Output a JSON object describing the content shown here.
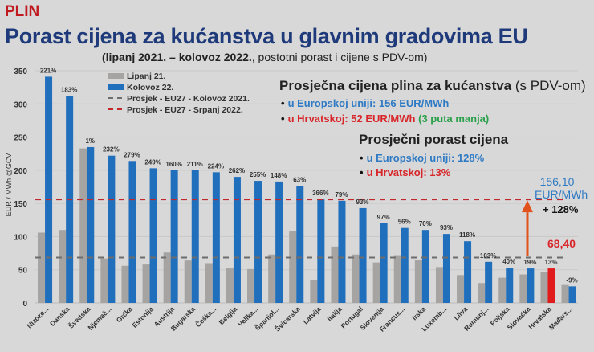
{
  "header": {
    "tag": "PLIN",
    "title": "Porast cijena za kućanstva u glavnim gradovima EU",
    "subtitle_bold": "(lipanj 2021. – kolovoz 2022.",
    "subtitle_rest": ", postotni porast i cijene s PDV-om)"
  },
  "info": {
    "avg_price_title": "Prosječna cijena plina za kućanstva",
    "avg_price_title_suffix": " (s PDV-om)",
    "eu_price": "u Europskoj uniji: 156 EUR/MWh",
    "hr_price": "u Hrvatskoj: 52 EUR/MWh",
    "hr_price_note": "(3 puta manja)",
    "avg_increase_title": "Prosječni porast cijena",
    "eu_increase": "u Europskoj uniji: 128%",
    "hr_increase": "u Hrvatskoj: 13%"
  },
  "annotations": {
    "eu_value_line1": "156,10",
    "eu_value_line2": "EUR/MWh",
    "increase": "+ 128%",
    "old_value": "68,40"
  },
  "colors": {
    "lipanj": "#a6a4a2",
    "kolovoz": "#1f6fbd",
    "hrvatska": "#e11b1b",
    "avg2021": "#6d6d6d",
    "avg2022": "#c0282c",
    "arrow": "#e2521c"
  },
  "chart_data": {
    "type": "bar",
    "title": "Porast cijena za kućanstva u glavnim gradovima EU",
    "xlabel": "",
    "ylabel": "EUR / MWh @GCV",
    "ylim": [
      0,
      350
    ],
    "yticks": [
      0,
      50,
      100,
      150,
      200,
      250,
      300,
      350
    ],
    "grid": true,
    "legend_position": "top-left",
    "legend": [
      "Lipanj 21.",
      "Kolovoz 22.",
      "Prosjek - EU27 - Kolovoz 2021.",
      "Prosjek - EU27 - Srpanj 2022."
    ],
    "categories": [
      "Nizoze...",
      "Danska",
      "Švedska",
      "Njemač...",
      "Grčka",
      "Estonija",
      "Austrija",
      "Bugarska",
      "Češka...",
      "Belgija",
      "Velika...",
      "Španjol...",
      "Švicarska",
      "Latvija",
      "Italija",
      "Portugal",
      "Slovenija",
      "Francus...",
      "Irska",
      "Luxemb...",
      "Litva",
      "Rumunj...",
      "Poljska",
      "Slovačka",
      "Hrvatska",
      "Mađars..."
    ],
    "series": [
      {
        "name": "Lipanj 21.",
        "values": [
          106,
          110,
          233,
          67,
          56,
          58,
          76,
          64,
          60,
          52,
          51,
          73,
          108,
          34,
          85,
          73,
          61,
          72,
          65,
          54,
          42,
          30,
          38,
          43,
          46,
          27
        ]
      },
      {
        "name": "Kolovoz 22.",
        "values": [
          341,
          312,
          235,
          222,
          214,
          203,
          200,
          200,
          197,
          190,
          184,
          183,
          176,
          156,
          154,
          143,
          120,
          113,
          110,
          104,
          93,
          62,
          53,
          52,
          52,
          25
        ]
      }
    ],
    "pct_labels": [
      "221%",
      "183%",
      "1%",
      "232%",
      "279%",
      "249%",
      "160%",
      "211%",
      "224%",
      "262%",
      "255%",
      "148%",
      "63%",
      "366%",
      "79%",
      "93%",
      "97%",
      "56%",
      "70%",
      "93%",
      "118%",
      "103%",
      "40%",
      "19%",
      "13%",
      "-9%"
    ],
    "reference_lines": [
      {
        "name": "Prosjek - EU27 - Kolovoz 2021.",
        "value": 68.4
      },
      {
        "name": "Prosjek - EU27 - Srpanj 2022.",
        "value": 156.1
      }
    ],
    "highlight_category": "Hrvatska"
  }
}
